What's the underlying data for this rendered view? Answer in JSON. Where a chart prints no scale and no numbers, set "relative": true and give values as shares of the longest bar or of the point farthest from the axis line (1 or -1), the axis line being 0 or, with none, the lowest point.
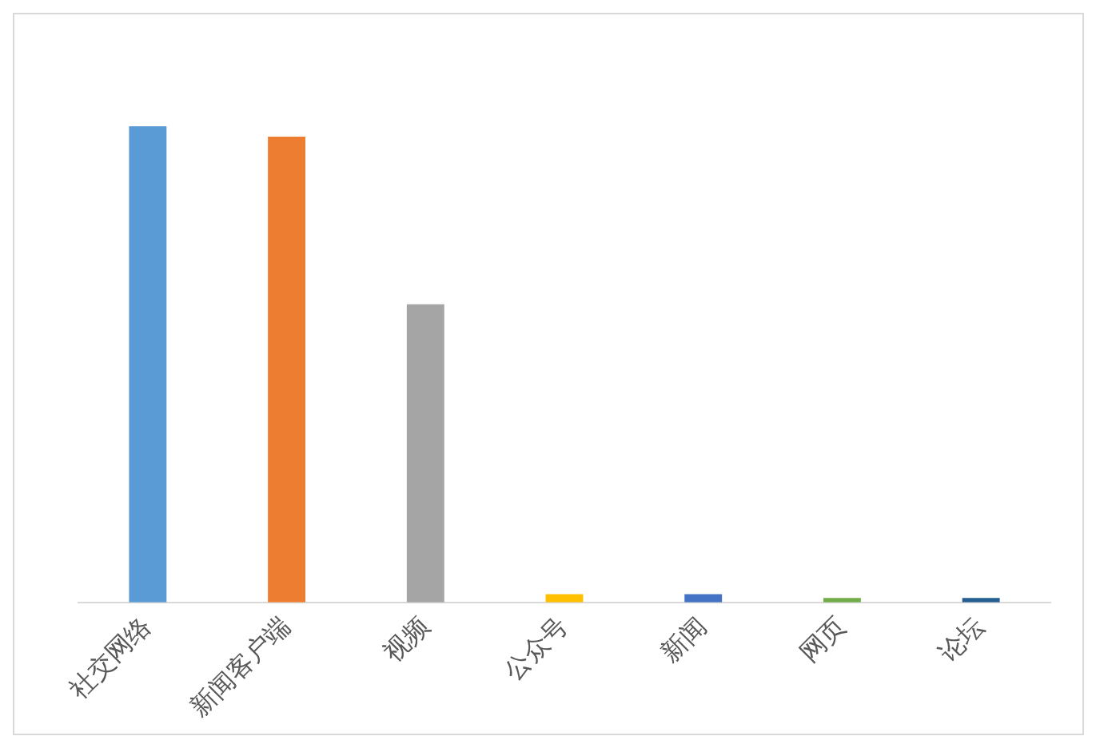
{
  "chart_data": {
    "type": "bar",
    "relative": true,
    "categories": [
      "社交网络",
      "新闻客户端",
      "视频",
      "公众号",
      "新闻",
      "网页",
      "论坛"
    ],
    "values": [
      1,
      0.978,
      0.626,
      0.017,
      0.017,
      0.009,
      0.009
    ],
    "colors": [
      "#5b9bd5",
      "#ed7d31",
      "#a5a5a5",
      "#ffc000",
      "#4472c4",
      "#70ad47",
      "#255e91"
    ],
    "grid": false,
    "legend": false
  }
}
